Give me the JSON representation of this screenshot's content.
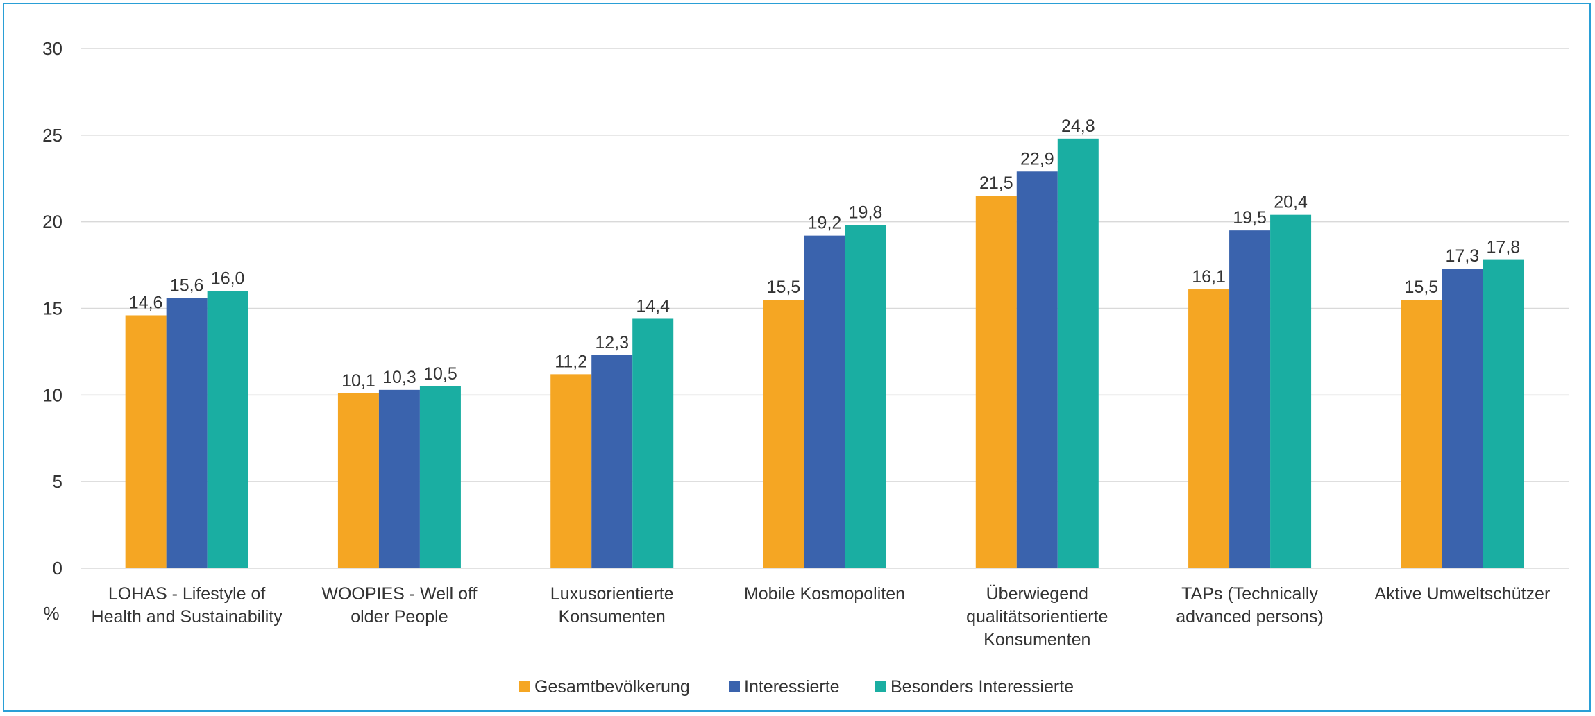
{
  "chart_data": {
    "type": "bar",
    "title": "",
    "xlabel": "",
    "ylabel": "%",
    "ylim": [
      0,
      30
    ],
    "yticks": [
      0,
      5,
      10,
      15,
      20,
      25,
      30
    ],
    "grid": true,
    "legend_position": "bottom",
    "categories": [
      [
        "LOHAS - Lifestyle of",
        "Health and Sustainability"
      ],
      [
        "WOOPIES - Well off",
        "older People"
      ],
      [
        "Luxusorientierte",
        "Konsumenten"
      ],
      [
        "Mobile Kosmopoliten"
      ],
      [
        "Überwiegend",
        "qualitätsorientierte",
        "Konsumenten"
      ],
      [
        "TAPs (Technically",
        "advanced persons)"
      ],
      [
        "Aktive Umweltschützer"
      ]
    ],
    "series": [
      {
        "name": "Gesamtbevölkerung",
        "color": "#f5a623",
        "values": [
          14.6,
          10.1,
          11.2,
          15.5,
          21.5,
          16.1,
          15.5
        ],
        "labels": [
          "14,6",
          "10,1",
          "11,2",
          "15,5",
          "21,5",
          "16,1",
          "15,5"
        ]
      },
      {
        "name": "Interessierte",
        "color": "#3a63ad",
        "values": [
          15.6,
          10.3,
          12.3,
          19.2,
          22.9,
          19.5,
          17.3
        ],
        "labels": [
          "15,6",
          "10,3",
          "12,3",
          "19,2",
          "22,9",
          "19,5",
          "17,3"
        ]
      },
      {
        "name": "Besonders Interessierte",
        "color": "#1aaea2",
        "values": [
          16.0,
          10.5,
          14.4,
          19.8,
          24.8,
          20.4,
          17.8
        ],
        "labels": [
          "16,0",
          "10,5",
          "14,4",
          "19,8",
          "24,8",
          "20,4",
          "17,8"
        ]
      }
    ]
  }
}
